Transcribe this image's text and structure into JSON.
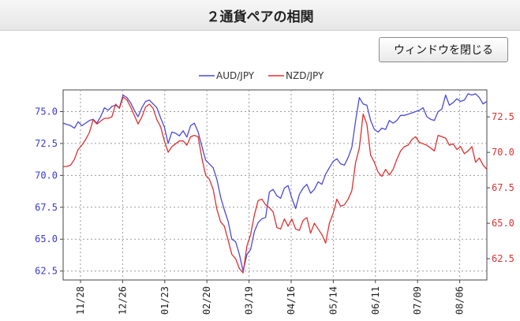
{
  "window": {
    "title": "２通貨ペアの相関",
    "close_button_label": "ウィンドウを閉じる"
  },
  "chart_data": {
    "type": "line",
    "legend_position": "top-center",
    "grid": true,
    "x_ticks": [
      "11/28",
      "12/26",
      "01/23",
      "02/20",
      "03/19",
      "04/16",
      "05/14",
      "06/11",
      "07/09",
      "08/06"
    ],
    "y_left": {
      "ticks": [
        "62.5",
        "65.0",
        "67.5",
        "70.0",
        "72.5",
        "75.0"
      ],
      "color": "#3a3acf",
      "ylim": [
        61.8,
        76.7
      ]
    },
    "y_right": {
      "ticks": [
        "62.5",
        "65.0",
        "67.5",
        "70.0",
        "72.5"
      ],
      "color": "#e03030",
      "ylim": [
        61.0,
        74.4
      ]
    },
    "series": [
      {
        "name": "AUD/JPY",
        "axis": "left",
        "color": "#4a4ad8",
        "values": [
          74.1,
          74.0,
          73.9,
          73.7,
          74.2,
          73.9,
          74.1,
          74.3,
          74.4,
          74.1,
          74.6,
          75.3,
          75.1,
          75.4,
          75.5,
          75.3,
          76.3,
          76.1,
          75.7,
          75.1,
          74.6,
          75.3,
          75.8,
          75.9,
          75.6,
          75.3,
          74.5,
          73.8,
          72.5,
          73.4,
          73.3,
          73.1,
          73.5,
          73.0,
          73.9,
          74.1,
          73.4,
          72.3,
          71.2,
          70.9,
          70.6,
          69.7,
          68.3,
          67.3,
          66.4,
          65.0,
          64.8,
          63.8,
          62.5,
          63.8,
          64.2,
          65.6,
          66.3,
          66.6,
          66.7,
          68.7,
          68.9,
          68.4,
          68.2,
          69.0,
          69.2,
          68.2,
          67.4,
          68.5,
          69.0,
          69.3,
          68.6,
          68.9,
          69.5,
          69.3,
          70.1,
          70.6,
          71.1,
          71.3,
          70.9,
          70.8,
          71.4,
          72.2,
          74.3,
          76.1,
          75.6,
          75.5,
          74.3,
          73.6,
          73.4,
          73.7,
          73.6,
          74.3,
          74.1,
          74.3,
          74.7,
          74.7,
          74.8,
          74.9,
          75.0,
          75.1,
          75.3,
          74.6,
          74.4,
          74.3,
          75.0,
          75.2,
          76.3,
          75.5,
          75.7,
          76.0,
          75.8,
          75.9,
          76.4,
          76.3,
          76.4,
          76.1,
          75.6,
          75.8
        ]
      },
      {
        "name": "NZD/JPY",
        "axis": "right",
        "color": "#e03030",
        "values": [
          69.0,
          69.0,
          69.1,
          69.5,
          70.2,
          70.5,
          70.9,
          71.4,
          72.3,
          72.0,
          72.2,
          72.4,
          72.4,
          72.5,
          73.4,
          73.1,
          73.9,
          73.7,
          73.2,
          72.6,
          72.0,
          72.5,
          73.2,
          73.4,
          73.1,
          72.3,
          71.8,
          70.8,
          70.0,
          70.4,
          70.6,
          70.8,
          70.8,
          70.5,
          71.1,
          71.2,
          71.1,
          69.6,
          68.4,
          68.1,
          67.4,
          66.0,
          65.1,
          64.8,
          63.8,
          62.8,
          62.5,
          61.8,
          61.5,
          63.4,
          64.2,
          65.6,
          66.6,
          66.7,
          66.3,
          66.1,
          65.8,
          64.7,
          64.6,
          65.3,
          64.8,
          65.3,
          64.6,
          64.5,
          65.2,
          65.4,
          64.3,
          65.0,
          64.6,
          64.2,
          63.6,
          65.0,
          65.7,
          66.7,
          66.2,
          66.3,
          66.7,
          67.3,
          69.3,
          70.3,
          72.7,
          72.0,
          69.8,
          69.3,
          68.6,
          68.3,
          68.8,
          68.4,
          68.8,
          69.5,
          70.1,
          70.4,
          70.5,
          70.9,
          71.1,
          70.7,
          70.6,
          70.5,
          70.3,
          70.1,
          71.2,
          71.1,
          71.0,
          70.5,
          70.6,
          70.2,
          70.4,
          69.9,
          70.1,
          70.4,
          69.3,
          69.6,
          69.1,
          68.8
        ]
      }
    ]
  }
}
